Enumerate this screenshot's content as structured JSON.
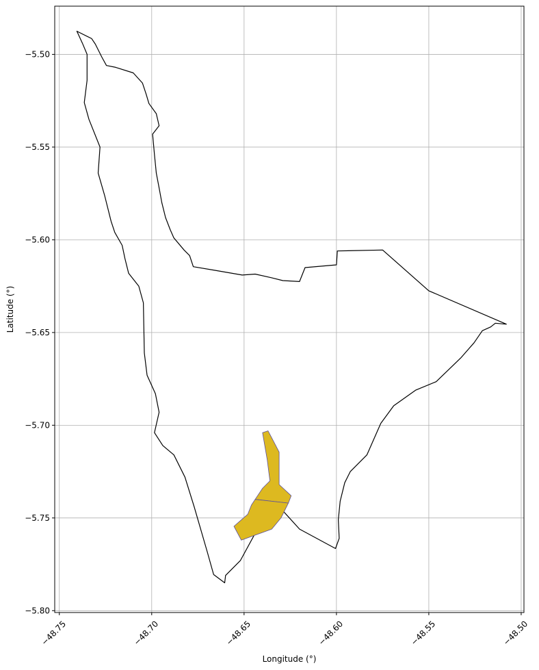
{
  "chart_data": {
    "type": "map",
    "xlabel": "Longitude (°)",
    "ylabel": "Latitude (°)",
    "xlim": [
      -48.7525,
      -48.4985
    ],
    "ylim": [
      -5.801,
      -5.474
    ],
    "grid": true,
    "x_ticks": [
      {
        "value": -48.75,
        "label": "−48.75"
      },
      {
        "value": -48.7,
        "label": "−48.70"
      },
      {
        "value": -48.65,
        "label": "−48.65"
      },
      {
        "value": -48.6,
        "label": "−48.60"
      },
      {
        "value": -48.55,
        "label": "−48.55"
      },
      {
        "value": -48.5,
        "label": "−48.50"
      }
    ],
    "y_ticks": [
      {
        "value": -5.5,
        "label": "−5.50"
      },
      {
        "value": -5.55,
        "label": "−5.55"
      },
      {
        "value": -5.6,
        "label": "−5.60"
      },
      {
        "value": -5.65,
        "label": "−5.65"
      },
      {
        "value": -5.7,
        "label": "−5.70"
      },
      {
        "value": -5.75,
        "label": "−5.75"
      },
      {
        "value": -5.8,
        "label": "−5.80"
      }
    ],
    "boundary": {
      "stroke": "#000000",
      "fill": "none",
      "coords": [
        [
          -48.7405,
          -5.4875
        ],
        [
          -48.7325,
          -5.4915
        ],
        [
          -48.7305,
          -5.4945
        ],
        [
          -48.727,
          -5.5015
        ],
        [
          -48.7245,
          -5.506
        ],
        [
          -48.7195,
          -5.507
        ],
        [
          -48.71,
          -5.51
        ],
        [
          -48.705,
          -5.5155
        ],
        [
          -48.703,
          -5.5215
        ],
        [
          -48.7015,
          -5.5265
        ],
        [
          -48.6975,
          -5.532
        ],
        [
          -48.696,
          -5.5385
        ],
        [
          -48.6995,
          -5.543
        ],
        [
          -48.6985,
          -5.554
        ],
        [
          -48.6975,
          -5.564
        ],
        [
          -48.696,
          -5.572
        ],
        [
          -48.6945,
          -5.58
        ],
        [
          -48.6925,
          -5.588
        ],
        [
          -48.69,
          -5.5945
        ],
        [
          -48.688,
          -5.599
        ],
        [
          -48.6825,
          -5.6055
        ],
        [
          -48.6795,
          -5.6085
        ],
        [
          -48.6775,
          -5.6145
        ],
        [
          -48.6655,
          -5.6165
        ],
        [
          -48.651,
          -5.619
        ],
        [
          -48.644,
          -5.6185
        ],
        [
          -48.635,
          -5.6205
        ],
        [
          -48.629,
          -5.622
        ],
        [
          -48.62,
          -5.6225
        ],
        [
          -48.617,
          -5.615
        ],
        [
          -48.6,
          -5.6135
        ],
        [
          -48.5995,
          -5.606
        ],
        [
          -48.575,
          -5.6055
        ],
        [
          -48.55,
          -5.6275
        ],
        [
          -48.508,
          -5.6455
        ],
        [
          -48.514,
          -5.645
        ],
        [
          -48.5165,
          -5.647
        ],
        [
          -48.521,
          -5.649
        ],
        [
          -48.5255,
          -5.6555
        ],
        [
          -48.5325,
          -5.6635
        ],
        [
          -48.546,
          -5.6765
        ],
        [
          -48.557,
          -5.681
        ],
        [
          -48.569,
          -5.6895
        ],
        [
          -48.576,
          -5.699
        ],
        [
          -48.5835,
          -5.716
        ],
        [
          -48.5925,
          -5.725
        ],
        [
          -48.5955,
          -5.731
        ],
        [
          -48.598,
          -5.741
        ],
        [
          -48.599,
          -5.751
        ],
        [
          -48.5985,
          -5.761
        ],
        [
          -48.6005,
          -5.7665
        ],
        [
          -48.62,
          -5.756
        ],
        [
          -48.63,
          -5.745
        ],
        [
          -48.64,
          -5.751
        ],
        [
          -48.652,
          -5.773
        ],
        [
          -48.66,
          -5.781
        ],
        [
          -48.6605,
          -5.785
        ],
        [
          -48.6665,
          -5.7805
        ],
        [
          -48.67,
          -5.768
        ],
        [
          -48.677,
          -5.744
        ],
        [
          -48.682,
          -5.728
        ],
        [
          -48.688,
          -5.716
        ],
        [
          -48.694,
          -5.711
        ],
        [
          -48.6985,
          -5.704
        ],
        [
          -48.696,
          -5.693
        ],
        [
          -48.698,
          -5.683
        ],
        [
          -48.7025,
          -5.673
        ],
        [
          -48.704,
          -5.661
        ],
        [
          -48.7045,
          -5.634
        ],
        [
          -48.707,
          -5.625
        ],
        [
          -48.7125,
          -5.618
        ],
        [
          -48.7145,
          -5.61
        ],
        [
          -48.716,
          -5.603
        ],
        [
          -48.72,
          -5.596
        ],
        [
          -48.722,
          -5.59
        ],
        [
          -48.7255,
          -5.576
        ],
        [
          -48.729,
          -5.564
        ],
        [
          -48.728,
          -5.55
        ],
        [
          -48.734,
          -5.535
        ],
        [
          -48.7365,
          -5.526
        ],
        [
          -48.735,
          -5.514
        ],
        [
          -48.735,
          -5.5
        ],
        [
          -48.7375,
          -5.494
        ],
        [
          -48.7405,
          -5.4875
        ]
      ]
    },
    "highlight": {
      "fill": "#DDB920",
      "stroke": "#5A4FA0",
      "polygons": [
        [
          [
            -48.64,
            -5.704
          ],
          [
            -48.637,
            -5.703
          ],
          [
            -48.631,
            -5.7145
          ],
          [
            -48.631,
            -5.732
          ],
          [
            -48.6245,
            -5.738
          ],
          [
            -48.626,
            -5.742
          ],
          [
            -48.635,
            -5.741
          ],
          [
            -48.644,
            -5.74
          ],
          [
            -48.64,
            -5.734
          ],
          [
            -48.636,
            -5.73
          ],
          [
            -48.6375,
            -5.7185
          ],
          [
            -48.64,
            -5.704
          ]
        ],
        [
          [
            -48.644,
            -5.74
          ],
          [
            -48.626,
            -5.742
          ],
          [
            -48.63,
            -5.75
          ],
          [
            -48.635,
            -5.756
          ],
          [
            -48.6515,
            -5.762
          ],
          [
            -48.6555,
            -5.7545
          ],
          [
            -48.648,
            -5.748
          ],
          [
            -48.646,
            -5.743
          ],
          [
            -48.644,
            -5.74
          ]
        ]
      ]
    }
  }
}
